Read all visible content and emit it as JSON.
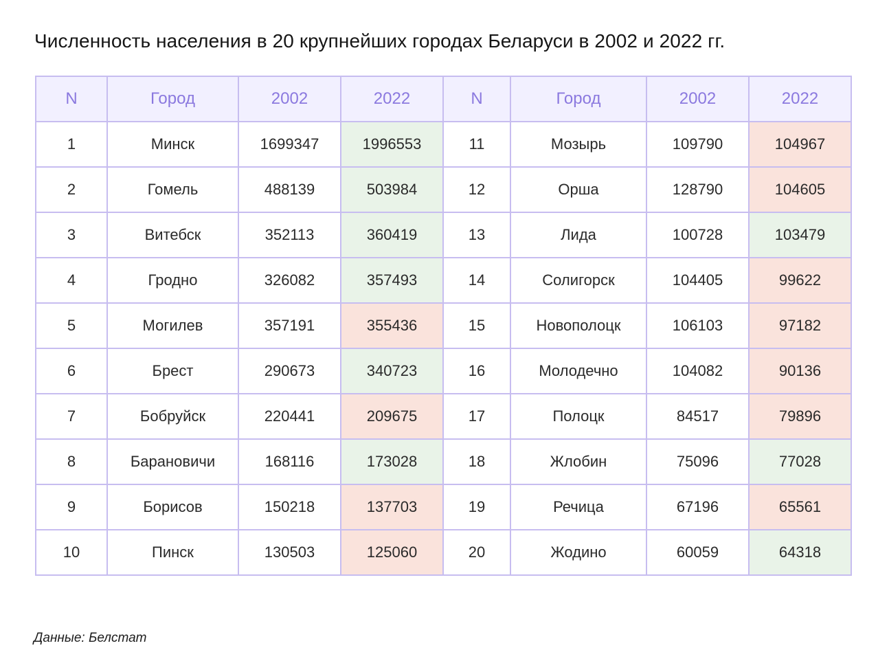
{
  "title": "Численность населения в 20 крупнейших городах Беларуси в 2002 и 2022 гг.",
  "source": "Данные: Белстат",
  "colors": {
    "header_bg": "#f2f0ff",
    "header_text": "#8b79df",
    "border": "#c7bdf0",
    "increase_bg": "#e9f3e8",
    "decrease_bg": "#fae3dc"
  },
  "chart_data": {
    "type": "table",
    "title": "Численность населения в 20 крупнейших городах Беларуси в 2002 и 2022 гг.",
    "columns": [
      "N",
      "Город",
      "2002",
      "2022",
      "N",
      "Город",
      "2002",
      "2022"
    ],
    "rows": [
      {
        "n": "1",
        "city": "Минск",
        "y2002": 1699347,
        "y2022": 1996553,
        "trend": "up"
      },
      {
        "n": "2",
        "city": "Гомель",
        "y2002": 488139,
        "y2022": 503984,
        "trend": "up"
      },
      {
        "n": "3",
        "city": "Витебск",
        "y2002": 352113,
        "y2022": 360419,
        "trend": "up"
      },
      {
        "n": "4",
        "city": "Гродно",
        "y2002": 326082,
        "y2022": 357493,
        "trend": "up"
      },
      {
        "n": "5",
        "city": "Могилев",
        "y2002": 357191,
        "y2022": 355436,
        "trend": "down"
      },
      {
        "n": "6",
        "city": "Брест",
        "y2002": 290673,
        "y2022": 340723,
        "trend": "up"
      },
      {
        "n": "7",
        "city": "Бобруйск",
        "y2002": 220441,
        "y2022": 209675,
        "trend": "down"
      },
      {
        "n": "8",
        "city": "Барановичи",
        "y2002": 168116,
        "y2022": 173028,
        "trend": "up"
      },
      {
        "n": "9",
        "city": "Борисов",
        "y2002": 150218,
        "y2022": 137703,
        "trend": "down"
      },
      {
        "n": "10",
        "city": "Пинск",
        "y2002": 130503,
        "y2022": 125060,
        "trend": "down"
      },
      {
        "n": "11",
        "city": "Мозырь",
        "y2002": 109790,
        "y2022": 104967,
        "trend": "down"
      },
      {
        "n": "12",
        "city": "Орша",
        "y2002": 128790,
        "y2022": 104605,
        "trend": "down"
      },
      {
        "n": "13",
        "city": "Лида",
        "y2002": 100728,
        "y2022": 103479,
        "trend": "up"
      },
      {
        "n": "14",
        "city": "Солигорск",
        "y2002": 104405,
        "y2022": 99622,
        "trend": "down"
      },
      {
        "n": "15",
        "city": "Новополоцк",
        "y2002": 106103,
        "y2022": 97182,
        "trend": "down"
      },
      {
        "n": "16",
        "city": "Молодечно",
        "y2002": 104082,
        "y2022": 90136,
        "trend": "down"
      },
      {
        "n": "17",
        "city": "Полоцк",
        "y2002": 84517,
        "y2022": 79896,
        "trend": "down"
      },
      {
        "n": "18",
        "city": "Жлобин",
        "y2002": 75096,
        "y2022": 77028,
        "trend": "up"
      },
      {
        "n": "19",
        "city": "Речица",
        "y2002": 67196,
        "y2022": 65561,
        "trend": "down"
      },
      {
        "n": "20",
        "city": "Жодино",
        "y2002": 60059,
        "y2022": 64318,
        "trend": "up"
      }
    ]
  }
}
